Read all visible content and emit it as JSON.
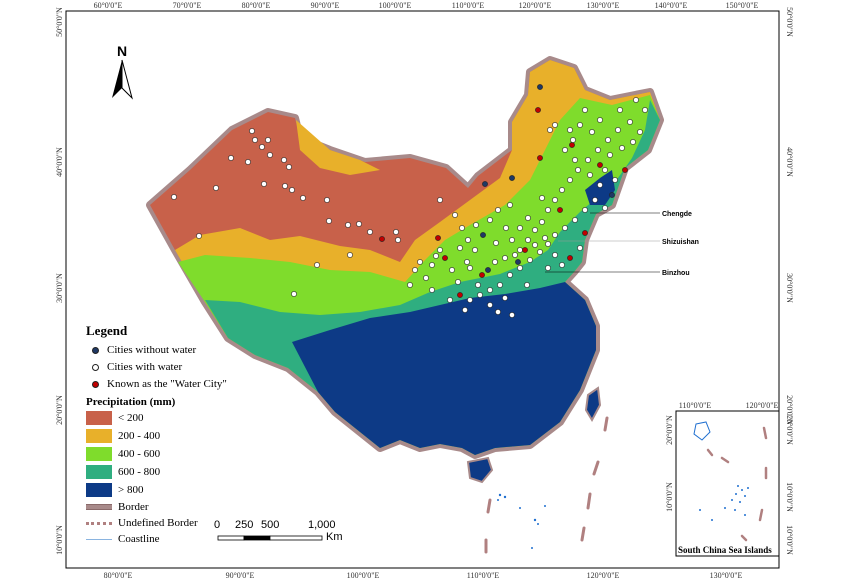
{
  "north_arrow": {
    "label": "N"
  },
  "graticule": {
    "top": [
      "60°0'0\"E",
      "70°0'0\"E",
      "80°0'0\"E",
      "90°0'0\"E",
      "100°0'0\"E",
      "110°0'0\"E",
      "120°0'0\"E",
      "130°0'0\"E",
      "140°0'0\"E",
      "150°0'0\"E"
    ],
    "bottom": [
      "80°0'0\"E",
      "90°0'0\"E",
      "100°0'0\"E",
      "110°0'0\"E",
      "120°0'0\"E",
      "130°0'0\"E"
    ],
    "left": [
      "50°0'0\"N",
      "40°0'0\"N",
      "30°0'0\"N",
      "20°0'0\"N",
      "10°0'0\"N"
    ],
    "right": [
      "50°0'0\"N",
      "40°0'0\"N",
      "30°0'0\"N",
      "20°0'0\"N",
      "10°0'0\"N"
    ]
  },
  "callouts": [
    "Chengde",
    "Shizuishan",
    "Binzhou"
  ],
  "legend": {
    "title": "Legend",
    "points": [
      {
        "label": "Cities without water",
        "color": "#1f3864"
      },
      {
        "label": "Cities with water",
        "color": "#ffffff"
      },
      {
        "label": "Known as the \"Water City\"",
        "color": "#c00000"
      }
    ],
    "precip_title": "Precipitation (mm)",
    "classes": [
      {
        "label": "< 200",
        "color": "#c8614a"
      },
      {
        "label": "200 - 400",
        "color": "#e8b02a"
      },
      {
        "label": "400 - 600",
        "color": "#7fdc2c"
      },
      {
        "label": "600 - 800",
        "color": "#2fae80"
      },
      {
        "label": "> 800",
        "color": "#0d3a86"
      }
    ],
    "lines": [
      {
        "label": "Border",
        "color": "#a88a8a"
      },
      {
        "label": "Undefined Border",
        "color": "#b08080"
      },
      {
        "label": "Coastline",
        "color": "#8ab4e0"
      }
    ]
  },
  "scale_bar": {
    "ticks": [
      "0",
      "250",
      "500",
      "1,000"
    ],
    "unit": "Km"
  },
  "inset": {
    "title": "South China Sea Islands",
    "top": [
      "110°0'0\"E",
      "120°0'0\"E"
    ],
    "bottom": [
      "110°0'0\"E",
      "120°0'0\"E"
    ],
    "left": [
      "20°0'0\"N",
      "10°0'0\"N"
    ],
    "right": [
      "20°0'0\"N",
      "10°0'0\"N"
    ]
  }
}
